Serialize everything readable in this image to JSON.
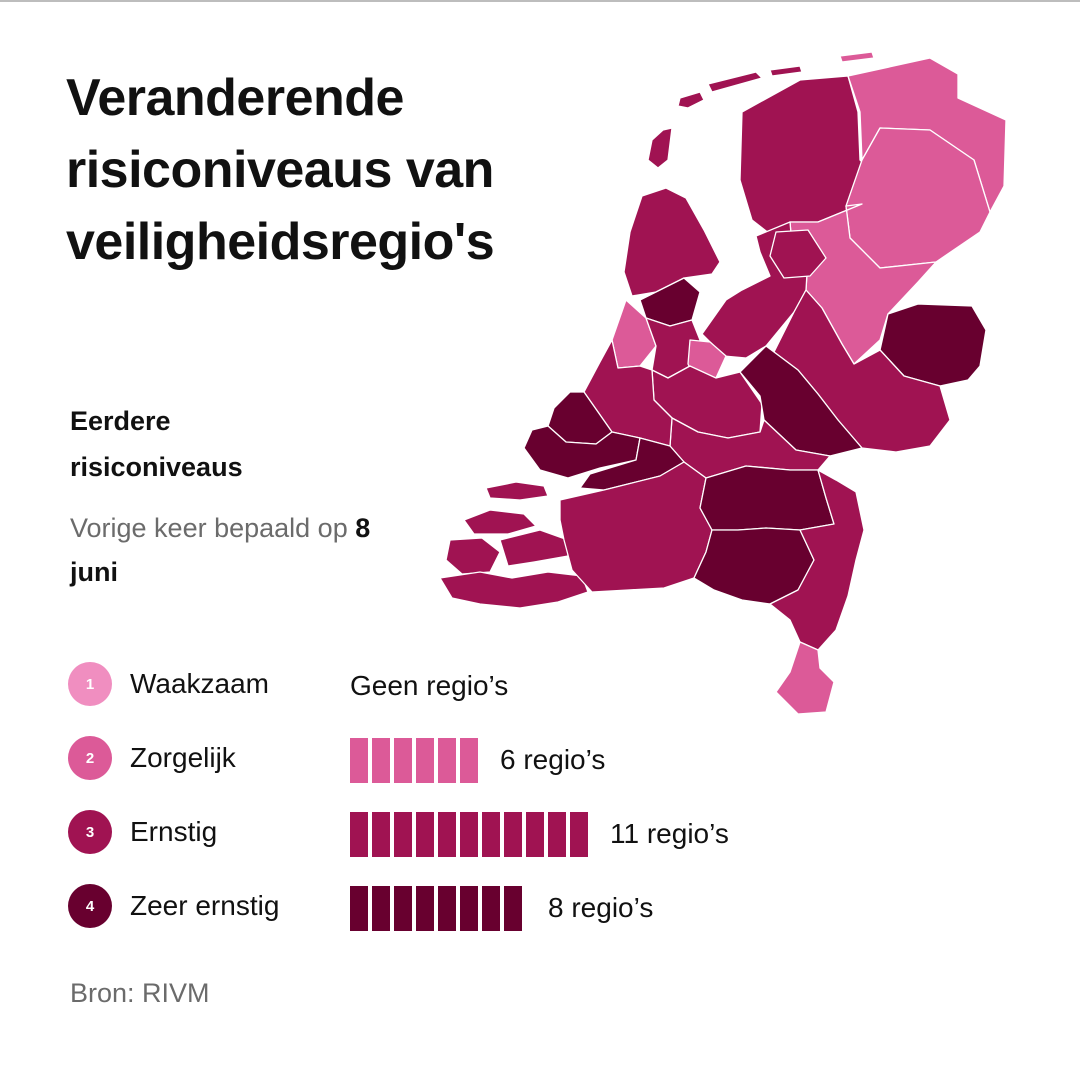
{
  "title": "Veranderende risiconiveaus van veiligheidsregio's",
  "subheading": "Eerdere risiconiveaus",
  "note": {
    "prefix": "Vorige keer bepaald op",
    "date": "8 juni"
  },
  "levels": [
    {
      "number": "1",
      "label": "Waakzaam",
      "count": 0,
      "count_label": "Geen regio’s",
      "color": "#f08ec0"
    },
    {
      "number": "2",
      "label": "Zorgelijk",
      "count": 6,
      "count_label": "6 regio’s",
      "color": "#dc5a98"
    },
    {
      "number": "3",
      "label": "Ernstig",
      "count": 11,
      "count_label": "11 regio’s",
      "color": "#a01352"
    },
    {
      "number": "4",
      "label": "Zeer ernstig",
      "count": 8,
      "count_label": "8 regio’s",
      "color": "#68002f"
    }
  ],
  "source": "Bron: RIVM",
  "map": {
    "regions": [
      {
        "id": "friesland",
        "level": 3
      },
      {
        "id": "groningen",
        "level": 2
      },
      {
        "id": "drenthe",
        "level": 2
      },
      {
        "id": "ijsselland",
        "level": 2
      },
      {
        "id": "twente",
        "level": 4
      },
      {
        "id": "flevoland",
        "level": 3
      },
      {
        "id": "noord-holland-noord",
        "level": 3
      },
      {
        "id": "zaanstreek-waterland",
        "level": 4
      },
      {
        "id": "kennemerland",
        "level": 2
      },
      {
        "id": "amsterdam-amstelland",
        "level": 3
      },
      {
        "id": "gooi-en-vechtstreek",
        "level": 2
      },
      {
        "id": "utrecht",
        "level": 3
      },
      {
        "id": "noord-en-oost-gelderland",
        "level": 3
      },
      {
        "id": "gelderland-midden",
        "level": 4
      },
      {
        "id": "gelderland-zuid",
        "level": 3
      },
      {
        "id": "hollands-midden",
        "level": 3
      },
      {
        "id": "haaglanden",
        "level": 4
      },
      {
        "id": "rotterdam-rijnmond",
        "level": 4
      },
      {
        "id": "zuid-holland-zuid",
        "level": 4
      },
      {
        "id": "zeeland",
        "level": 3
      },
      {
        "id": "midden-en-west-brabant",
        "level": 3
      },
      {
        "id": "brabant-noord",
        "level": 4
      },
      {
        "id": "brabant-zuidoost",
        "level": 4
      },
      {
        "id": "limburg-noord",
        "level": 3
      },
      {
        "id": "zuid-limburg",
        "level": 2
      }
    ]
  }
}
